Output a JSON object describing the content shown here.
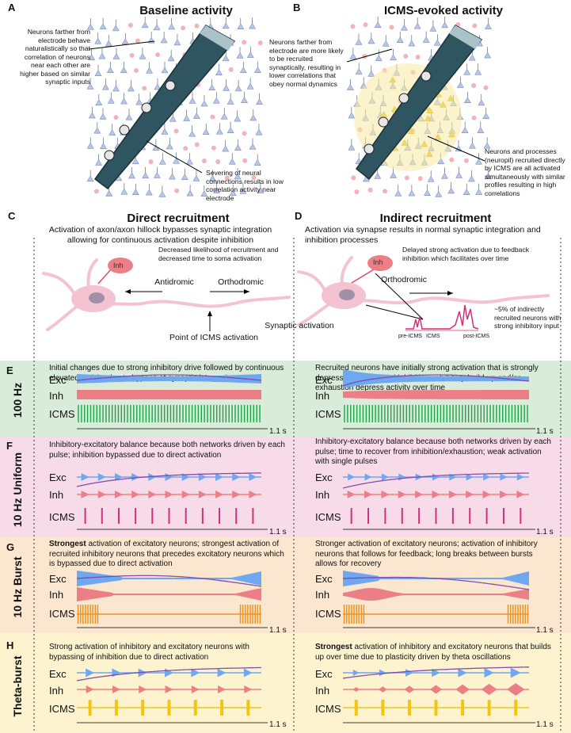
{
  "colors": {
    "exc": "#6fa8f0",
    "inh": "#ec7f85",
    "icms_100": "#1fa34a",
    "icms_10u": "#d0307a",
    "icms_burst": "#f0921e",
    "icms_theta": "#f2c515",
    "band_100": "#d9ecd9",
    "band_10u": "#f8dbe9",
    "band_burst": "#fbe6cf",
    "band_theta": "#fdf3cf",
    "electrode": "#2f5560",
    "neuron": "#f4c3d2"
  },
  "panelA": {
    "letter": "A",
    "title": "Baseline activity",
    "note_left": "Neurons farther from electrode behave naturalistically so that correlation of neurons near each other are higher based on similar synaptic inputs",
    "note_right": "Severing of neural connections results in low correlation activity near electrode"
  },
  "panelB": {
    "letter": "B",
    "title": "ICMS-evoked activity",
    "note_left": "Neurons farther from electrode are more likely to be recruited synaptically, resulting in lower correlations that obey normal dynamics",
    "note_right": "Neurons and processes (neuropil) recruited directly by ICMS are all activated simultaneously with similar profiles resulting in high correlations"
  },
  "panelC": {
    "letter": "C",
    "title": "Direct recruitment",
    "subtitle": "Activation of axon/axon hillock bypasses synaptic integration allowing for continuous activation despite inhibition",
    "inh_label": "Inh",
    "note": "Decreased likelihood of recruitment and decreased time to soma activation",
    "antidromic": "Antidromic",
    "orthodromic": "Orthodromic",
    "point": "Point of ICMS activation"
  },
  "panelD": {
    "letter": "D",
    "title": "Indirect recruitment",
    "subtitle": "Activation via synapse results in normal synaptic integration and inhibition processes",
    "inh_label": "Inh",
    "note": "Delayed strong activation due to feedback inhibition which facilitates over time",
    "orthodromic": "Orthodromic",
    "synaptic": "Synaptic activation",
    "pre": "pre-ICMS",
    "icms": "ICMS",
    "post": "post-ICMS",
    "percent_note": "~5% of indirectly recruited neurons with strong inhibitory input"
  },
  "labels": {
    "exc": "Exc",
    "inh": "Inh",
    "icms": "ICMS",
    "time": "1.1 s"
  },
  "rows": [
    {
      "letter": "E",
      "title": "100 Hz",
      "left_desc": "Initial changes due to strong inhibitory drive followed by continuous elevated activity due to bypass of synaptic integration",
      "right_desc": "Recruited neurons have initially strong activation that is strongly depressed by recruited inhibition; inhibitory build-up and/or exhaustion depress activity over time"
    },
    {
      "letter": "F",
      "title": "10 Hz Uniform",
      "left_desc": "Inhibitory-excitatory balance because both networks driven by each pulse; inhibition bypassed due to direct activation",
      "right_desc": "Inhibitory-excitatory balance because both networks driven by each pulse; time to recover from inhibition/exhaustion; weak activation with single pulses"
    },
    {
      "letter": "G",
      "title": "10 Hz Burst",
      "left_strong": "Strongest",
      "left_desc": " activation of excitatory neurons; strongest activation of recruited inhibitory neurons that precedes excitatory neurons which is bypassed due to direct activation",
      "right_desc": "Stronger activation of excitatory neurons; activation of inhibitory neurons that follows for feedback; long breaks between bursts allows for recovery"
    },
    {
      "letter": "H",
      "title": "Theta-burst",
      "left_desc": "Strong activation of inhibitory and excitatory neurons with bypassing of inhibition due to direct activation",
      "right_strong": "Strongest",
      "right_desc": " activation of inhibitory and excitatory neurons that builds up over time due to plasticity driven by theta oscillations"
    }
  ]
}
